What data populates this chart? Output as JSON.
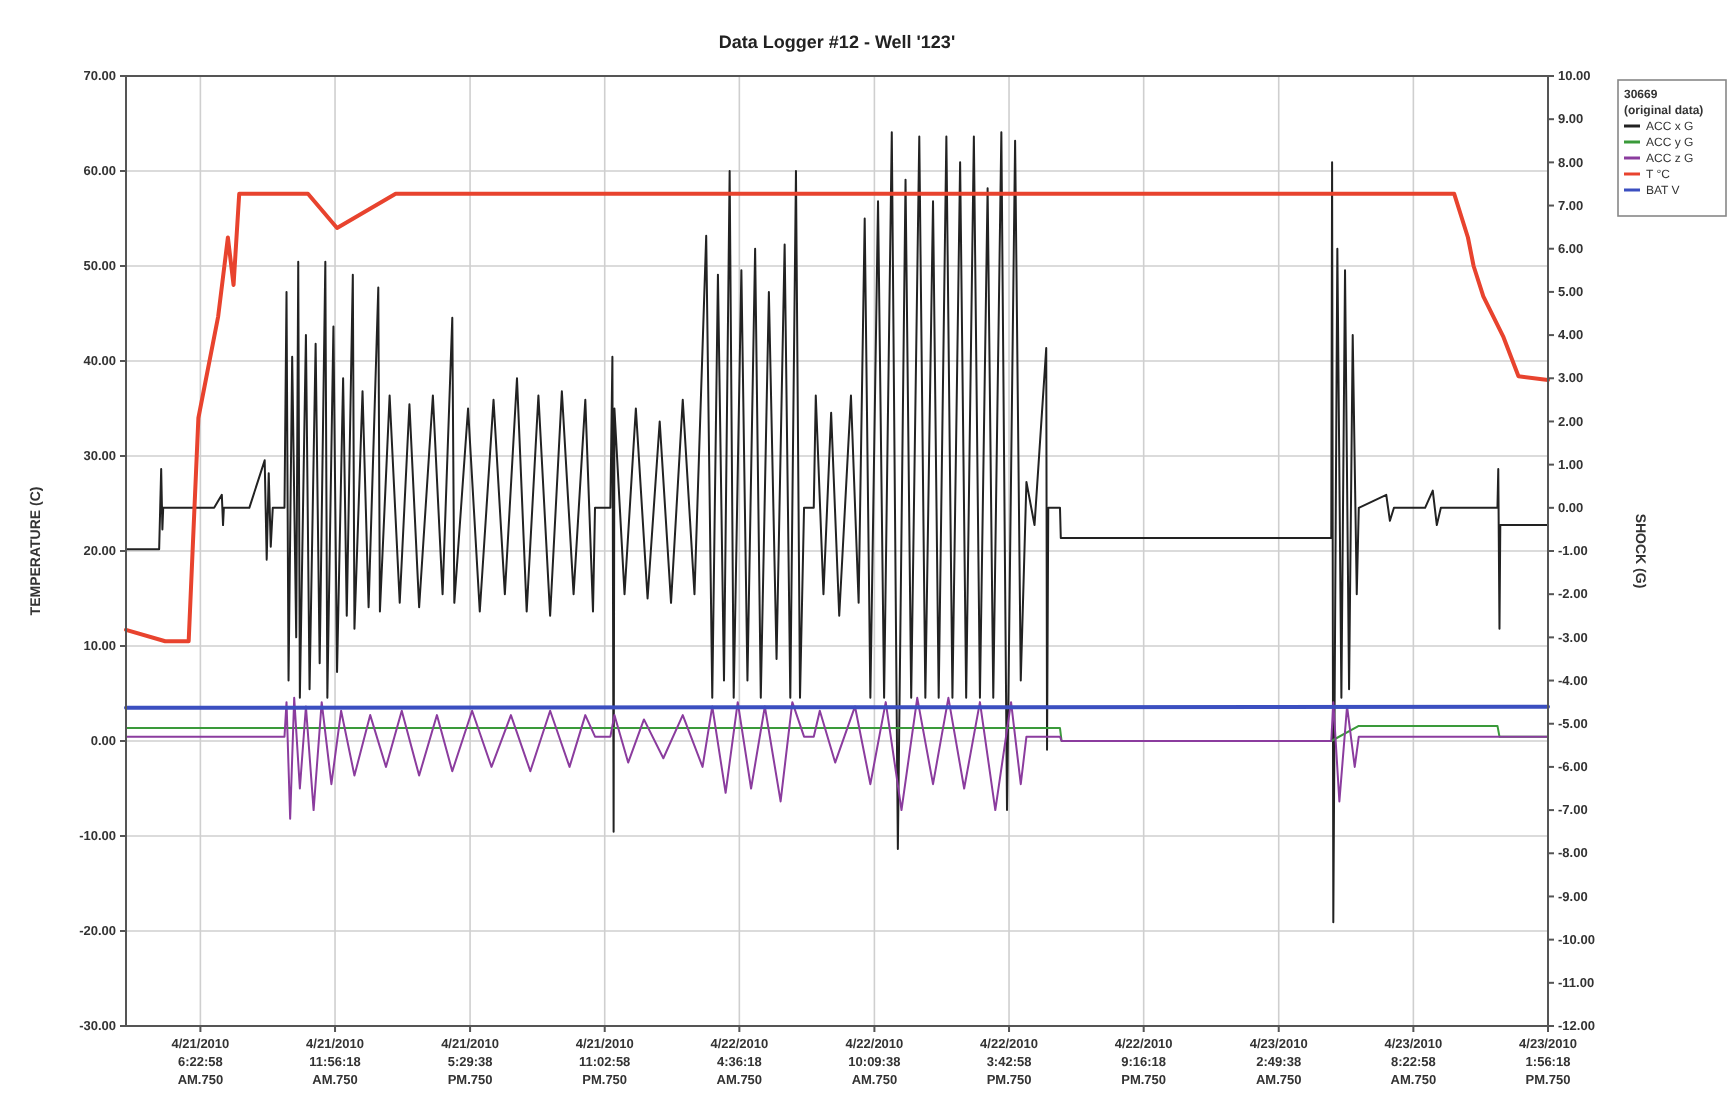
{
  "chart_data": {
    "type": "line",
    "title": "Data Logger #12 - Well '123'",
    "ylabel": "TEMPERATURE (C)",
    "y2label": "SHOCK (G)",
    "legend_title": "30669\n(original data)",
    "legend": "right",
    "grid": true,
    "xlim": [
      "2010-04-21T03:19",
      "2010-04-23T13:56"
    ],
    "xticks": [
      {
        "value": "2010-04-21T06:23",
        "label": "4/21/2010\n6:22:58\nAM.750"
      },
      {
        "value": "2010-04-21T11:56",
        "label": "4/21/2010\n11:56:18\nAM.750"
      },
      {
        "value": "2010-04-21T17:30",
        "label": "4/21/2010\n5:29:38\nPM.750"
      },
      {
        "value": "2010-04-21T23:03",
        "label": "4/21/2010\n11:02:58\nPM.750"
      },
      {
        "value": "2010-04-22T04:36",
        "label": "4/22/2010\n4:36:18\nAM.750"
      },
      {
        "value": "2010-04-22T10:10",
        "label": "4/22/2010\n10:09:38\nAM.750"
      },
      {
        "value": "2010-04-22T15:43",
        "label": "4/22/2010\n3:42:58\nPM.750"
      },
      {
        "value": "2010-04-22T21:16",
        "label": "4/22/2010\n9:16:18\nPM.750"
      },
      {
        "value": "2010-04-23T02:50",
        "label": "4/23/2010\n2:49:38\nAM.750"
      },
      {
        "value": "2010-04-23T08:23",
        "label": "4/23/2010\n8:22:58\nAM.750"
      },
      {
        "value": "2010-04-23T13:56",
        "label": "4/23/2010\n1:56:18\nPM.750"
      }
    ],
    "ylim": [
      -30,
      70
    ],
    "yticks": [
      {
        "value": -30,
        "label": "-30.00"
      },
      {
        "value": -20,
        "label": "-20.00"
      },
      {
        "value": -10,
        "label": "-10.00"
      },
      {
        "value": 0,
        "label": "0.00"
      },
      {
        "value": 10,
        "label": "10.00"
      },
      {
        "value": 20,
        "label": "20.00"
      },
      {
        "value": 30,
        "label": "30.00"
      },
      {
        "value": 40,
        "label": "40.00"
      },
      {
        "value": 50,
        "label": "50.00"
      },
      {
        "value": 60,
        "label": "60.00"
      },
      {
        "value": 70,
        "label": "70.00"
      }
    ],
    "y2lim": [
      -12,
      10
    ],
    "y2ticks": [
      {
        "value": -12,
        "label": "-12.00"
      },
      {
        "value": -11,
        "label": "-11.00"
      },
      {
        "value": -10,
        "label": "-10.00"
      },
      {
        "value": -9,
        "label": "-9.00"
      },
      {
        "value": -8,
        "label": "-8.00"
      },
      {
        "value": -7,
        "label": "-7.00"
      },
      {
        "value": -6,
        "label": "-6.00"
      },
      {
        "value": -5,
        "label": "-5.00"
      },
      {
        "value": -4,
        "label": "-4.00"
      },
      {
        "value": -3,
        "label": "-3.00"
      },
      {
        "value": -2,
        "label": "-2.00"
      },
      {
        "value": -1,
        "label": "-1.00"
      },
      {
        "value": 0,
        "label": "0.00"
      },
      {
        "value": 1,
        "label": "1.00"
      },
      {
        "value": 2,
        "label": "2.00"
      },
      {
        "value": 3,
        "label": "3.00"
      },
      {
        "value": 4,
        "label": "4.00"
      },
      {
        "value": 5,
        "label": "5.00"
      },
      {
        "value": 6,
        "label": "6.00"
      },
      {
        "value": 7,
        "label": "7.00"
      },
      {
        "value": 8,
        "label": "8.00"
      },
      {
        "value": 9,
        "label": "9.00"
      },
      {
        "value": 10,
        "label": "10.00"
      }
    ],
    "series": [
      {
        "name": "ACC x G",
        "color": "#222222",
        "axis": "y2",
        "x": [
          "2010-04-21T03:19",
          "2010-04-21T04:41",
          "2010-04-21T04:46",
          "2010-04-21T04:49",
          "2010-04-21T04:51",
          "2010-04-21T06:57",
          "2010-04-21T07:16",
          "2010-04-21T07:19",
          "2010-04-21T07:21",
          "2010-04-21T08:24",
          "2010-04-21T09:02",
          "2010-04-21T09:07",
          "2010-04-21T09:12",
          "2010-04-21T09:17",
          "2010-04-21T09:22",
          "2010-04-21T09:51",
          "2010-04-21T09:56",
          "2010-04-21T10:01",
          "2010-04-21T10:10",
          "2010-04-21T10:20",
          "2010-04-21T10:25",
          "2010-04-21T10:29",
          "2010-04-21T10:44",
          "2010-04-21T10:53",
          "2010-04-21T11:08",
          "2010-04-21T11:18",
          "2010-04-21T11:32",
          "2010-04-21T11:37",
          "2010-04-21T11:52",
          "2010-04-21T12:01",
          "2010-04-21T12:16",
          "2010-04-21T12:25",
          "2010-04-21T12:40",
          "2010-04-21T12:44",
          "2010-04-21T13:04",
          "2010-04-21T13:19",
          "2010-04-21T13:43",
          "2010-04-21T13:47",
          "2010-04-21T14:11",
          "2010-04-21T14:36",
          "2010-04-21T15:00",
          "2010-04-21T15:24",
          "2010-04-21T15:58",
          "2010-04-21T16:22",
          "2010-04-21T16:46",
          "2010-04-21T16:51",
          "2010-04-21T17:25",
          "2010-04-21T17:54",
          "2010-04-21T18:28",
          "2010-04-21T18:56",
          "2010-04-21T19:26",
          "2010-04-21T19:50",
          "2010-04-21T20:19",
          "2010-04-21T20:48",
          "2010-04-21T21:17",
          "2010-04-21T21:46",
          "2010-04-21T22:15",
          "2010-04-21T22:34",
          "2010-04-21T22:39",
          "2010-04-21T23:17",
          "2010-04-21T23:22",
          "2010-04-21T23:25",
          "2010-04-21T23:27",
          "2010-04-21T23:52",
          "2010-04-22T00:20",
          "2010-04-22T00:49",
          "2010-04-22T01:19",
          "2010-04-22T01:47",
          "2010-04-22T02:16",
          "2010-04-22T02:45",
          "2010-04-22T03:14",
          "2010-04-22T03:29",
          "2010-04-22T03:43",
          "2010-04-22T03:58",
          "2010-04-22T04:12",
          "2010-04-22T04:22",
          "2010-04-22T04:41",
          "2010-04-22T04:56",
          "2010-04-22T05:15",
          "2010-04-22T05:29",
          "2010-04-22T05:49",
          "2010-04-22T06:08",
          "2010-04-22T06:28",
          "2010-04-22T06:42",
          "2010-04-22T06:56",
          "2010-04-22T07:06",
          "2010-04-22T07:16",
          "2010-04-22T07:40",
          "2010-04-22T07:45",
          "2010-04-22T08:04",
          "2010-04-22T08:23",
          "2010-04-22T08:43",
          "2010-04-22T09:12",
          "2010-04-22T09:31",
          "2010-04-22T09:46",
          "2010-04-22T10:00",
          "2010-04-22T10:19",
          "2010-04-22T10:34",
          "2010-04-22T10:53",
          "2010-04-22T11:08",
          "2010-04-22T11:27",
          "2010-04-22T11:41",
          "2010-04-22T12:01",
          "2010-04-22T12:16",
          "2010-04-22T12:35",
          "2010-04-22T12:49",
          "2010-04-22T13:08",
          "2010-04-22T13:23",
          "2010-04-22T13:42",
          "2010-04-22T13:57",
          "2010-04-22T14:16",
          "2010-04-22T14:31",
          "2010-04-22T14:50",
          "2010-04-22T15:04",
          "2010-04-22T15:24",
          "2010-04-22T15:38",
          "2010-04-22T15:58",
          "2010-04-22T16:12",
          "2010-04-22T16:26",
          "2010-04-22T16:46",
          "2010-04-22T17:15",
          "2010-04-22T17:17",
          "2010-04-22T17:20",
          "2010-04-22T17:49",
          "2010-04-22T17:51",
          "2010-04-23T05:00",
          "2010-04-23T05:02",
          "2010-04-23T05:05",
          "2010-04-23T05:15",
          "2010-04-23T05:25",
          "2010-04-23T05:34",
          "2010-04-23T05:44",
          "2010-04-23T05:53",
          "2010-04-23T06:03",
          "2010-04-23T06:08",
          "2010-04-23T07:16",
          "2010-04-23T07:25",
          "2010-04-23T07:35",
          "2010-04-23T08:52",
          "2010-04-23T09:11",
          "2010-04-23T09:21",
          "2010-04-23T09:31",
          "2010-04-23T11:51",
          "2010-04-23T11:53",
          "2010-04-23T11:56",
          "2010-04-23T11:58",
          "2010-04-23T13:56"
        ],
        "values": [
          -0.96,
          -0.96,
          0.9,
          -0.5,
          0,
          0,
          0.3,
          -0.4,
          0,
          0,
          1.1,
          -1.2,
          0.8,
          -0.9,
          0,
          0,
          5.0,
          -4.0,
          3.5,
          -3.0,
          5.7,
          -4.4,
          4.0,
          -4.2,
          3.8,
          -3.6,
          5.7,
          -4.4,
          4.2,
          -3.8,
          3.0,
          -2.5,
          5.4,
          -2.8,
          2.7,
          -2.3,
          5.1,
          -2.4,
          2.6,
          -2.2,
          2.4,
          -2.3,
          2.6,
          -2.0,
          4.4,
          -2.2,
          2.3,
          -2.4,
          2.5,
          -2.0,
          3.0,
          -2.4,
          2.6,
          -2.5,
          2.7,
          -2.0,
          2.5,
          -2.4,
          0,
          0,
          3.5,
          -7.5,
          2.3,
          -2.0,
          2.3,
          -2.1,
          2.0,
          -2.2,
          2.5,
          -2.0,
          6.3,
          -4.4,
          5.4,
          -4.0,
          7.8,
          -4.4,
          5.5,
          -4.0,
          6.0,
          -4.4,
          5.0,
          -3.5,
          6.1,
          -4.4,
          7.8,
          -4.4,
          0,
          0,
          2.6,
          -2.0,
          2.2,
          -2.5,
          2.6,
          -2.2,
          6.7,
          -4.4,
          7.1,
          -4.4,
          8.7,
          -7.9,
          7.6,
          -4.4,
          8.6,
          -4.4,
          7.1,
          -4.4,
          8.6,
          -4.4,
          8.0,
          -4.4,
          8.6,
          -4.4,
          7.4,
          -4.4,
          8.7,
          -7.0,
          8.5,
          -4.0,
          0.6,
          -0.4,
          3.7,
          -5.6,
          0,
          0,
          -0.7,
          -0.7,
          8.0,
          -9.6,
          6.0,
          -4.4,
          5.5,
          -4.2,
          4.0,
          -2.0,
          0,
          0.3,
          -0.3,
          0,
          0,
          0.4,
          -0.4,
          0,
          0,
          0.9,
          -2.8,
          -0.4,
          -0.4
        ]
      },
      {
        "name": "ACC y G",
        "color": "#3a9a3a",
        "axis": "y2",
        "x": [
          "2010-04-21T03:19",
          "2010-04-21T09:51",
          "2010-04-22T17:49",
          "2010-04-22T17:53",
          "2010-04-23T05:00",
          "2010-04-23T06:08",
          "2010-04-23T11:51",
          "2010-04-23T11:56",
          "2010-04-23T13:56"
        ],
        "values": [
          -5.1,
          -5.1,
          -5.1,
          -5.4,
          -5.4,
          -5.05,
          -5.05,
          -5.3,
          -5.3
        ]
      },
      {
        "name": "ACC z G",
        "color": "#8b3c9e",
        "axis": "y2",
        "x": [
          "2010-04-21T03:19",
          "2010-04-21T09:51",
          "2010-04-21T09:56",
          "2010-04-21T10:05",
          "2010-04-21T10:15",
          "2010-04-21T10:29",
          "2010-04-21T10:44",
          "2010-04-21T11:03",
          "2010-04-21T11:23",
          "2010-04-21T11:47",
          "2010-04-21T12:11",
          "2010-04-21T12:44",
          "2010-04-21T13:23",
          "2010-04-21T14:02",
          "2010-04-21T14:41",
          "2010-04-21T15:24",
          "2010-04-21T16:08",
          "2010-04-21T16:46",
          "2010-04-21T17:35",
          "2010-04-21T18:23",
          "2010-04-21T19:11",
          "2010-04-21T19:59",
          "2010-04-21T20:48",
          "2010-04-21T21:36",
          "2010-04-21T22:15",
          "2010-04-21T22:39",
          "2010-04-21T23:17",
          "2010-04-21T23:27",
          "2010-04-22T00:01",
          "2010-04-22T00:40",
          "2010-04-22T01:28",
          "2010-04-22T02:16",
          "2010-04-22T03:05",
          "2010-04-22T03:29",
          "2010-04-22T04:02",
          "2010-04-22T04:32",
          "2010-04-22T05:05",
          "2010-04-22T05:39",
          "2010-04-22T06:18",
          "2010-04-22T06:47",
          "2010-04-22T07:16",
          "2010-04-22T07:40",
          "2010-04-22T07:55",
          "2010-04-22T08:33",
          "2010-04-22T09:22",
          "2010-04-22T10:00",
          "2010-04-22T10:38",
          "2010-04-22T11:17",
          "2010-04-22T11:56",
          "2010-04-22T12:35",
          "2010-04-22T13:13",
          "2010-04-22T13:52",
          "2010-04-22T14:31",
          "2010-04-22T15:09",
          "2010-04-22T15:48",
          "2010-04-22T16:12",
          "2010-04-22T16:26",
          "2010-04-22T17:49",
          "2010-04-22T17:53",
          "2010-04-23T05:00",
          "2010-04-23T05:05",
          "2010-04-23T05:20",
          "2010-04-23T05:39",
          "2010-04-23T05:58",
          "2010-04-23T06:08",
          "2010-04-23T13:56"
        ],
        "values": [
          -5.3,
          -5.3,
          -4.5,
          -7.2,
          -4.4,
          -6.5,
          -4.6,
          -7.0,
          -4.5,
          -6.4,
          -4.7,
          -6.2,
          -4.8,
          -6.0,
          -4.7,
          -6.2,
          -4.8,
          -6.1,
          -4.7,
          -6.0,
          -4.8,
          -6.1,
          -4.7,
          -6.0,
          -4.8,
          -5.3,
          -5.3,
          -4.8,
          -5.9,
          -4.9,
          -5.8,
          -4.8,
          -6.0,
          -4.6,
          -6.6,
          -4.5,
          -6.5,
          -4.6,
          -6.8,
          -4.5,
          -5.3,
          -5.3,
          -4.7,
          -5.9,
          -4.6,
          -6.4,
          -4.5,
          -7.0,
          -4.4,
          -6.4,
          -4.4,
          -6.5,
          -4.5,
          -7.0,
          -4.5,
          -6.4,
          -5.3,
          -5.3,
          -5.4,
          -5.4,
          -4.5,
          -6.8,
          -4.6,
          -6.0,
          -5.3,
          -5.3
        ]
      },
      {
        "name": "T °C",
        "color": "#e8432e",
        "x": [
          "2010-04-21T03:19",
          "2010-04-21T04:56",
          "2010-04-21T05:54",
          "2010-04-21T06:18",
          "2010-04-21T07:07",
          "2010-04-21T07:31",
          "2010-04-21T07:45",
          "2010-04-21T07:59",
          "2010-04-21T10:49",
          "2010-04-21T12:01",
          "2010-04-21T14:26",
          "2010-04-23T10:04",
          "2010-04-23T10:38",
          "2010-04-23T10:52",
          "2010-04-23T11:16",
          "2010-04-23T12:05",
          "2010-04-23T12:43",
          "2010-04-23T13:56"
        ],
        "values": [
          11.7,
          10.5,
          10.5,
          34,
          44.7,
          53,
          48,
          57.6,
          57.6,
          54,
          57.6,
          57.6,
          53,
          50,
          46.8,
          42.6,
          38.4,
          38
        ]
      },
      {
        "name": "BAT V",
        "color": "#3b4fc0",
        "x": [
          "2010-04-21T03:19",
          "2010-04-23T13:56"
        ],
        "values": [
          3.5,
          3.6
        ]
      }
    ]
  }
}
